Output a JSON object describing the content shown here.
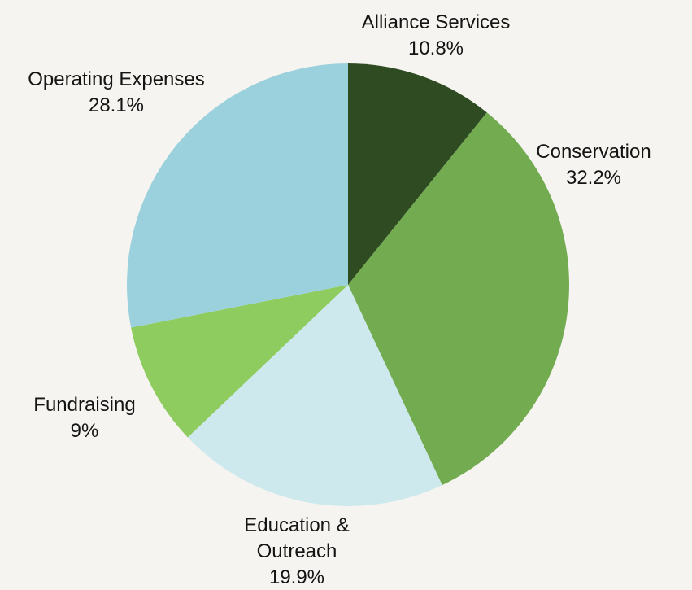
{
  "chart_data": {
    "type": "pie",
    "title": "",
    "start": "12 o'clock",
    "direction": "clockwise",
    "legend": "none",
    "slices": [
      {
        "label_lines": [
          "Alliance Services"
        ],
        "display_value": "10.8%",
        "value": 10.8,
        "color": "#2f4b22"
      },
      {
        "label_lines": [
          "Conservation"
        ],
        "display_value": "32.2%",
        "value": 32.2,
        "color": "#73ab50"
      },
      {
        "label_lines": [
          "Education &",
          "Outreach"
        ],
        "display_value": "19.9%",
        "value": 19.9,
        "color": "#cde9ee"
      },
      {
        "label_lines": [
          "Fundraising"
        ],
        "display_value": "9%",
        "value": 9,
        "color": "#8ecc5f"
      },
      {
        "label_lines": [
          "Operating Expenses"
        ],
        "display_value": "28.1%",
        "value": 28.1,
        "color": "#9bd1dc"
      }
    ]
  }
}
